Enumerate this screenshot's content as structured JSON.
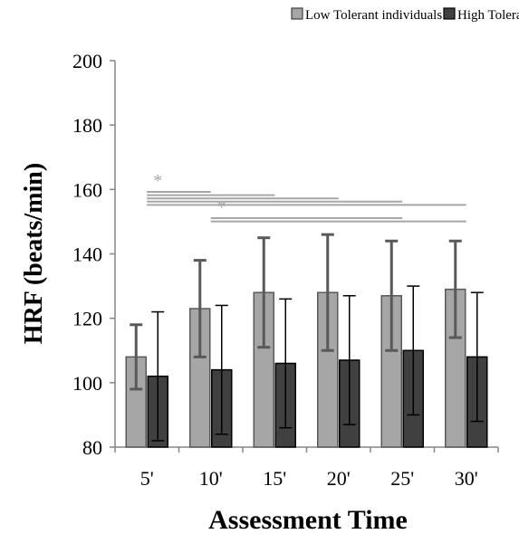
{
  "chart_data": {
    "type": "bar",
    "title": "",
    "xlabel": "Assessment Time",
    "ylabel": "HRF (beats/min)",
    "ylim": [
      80,
      200
    ],
    "yticks": [
      80,
      100,
      120,
      140,
      160,
      180,
      200
    ],
    "categories": [
      "5'",
      "10'",
      "15'",
      "20'",
      "25'",
      "30'"
    ],
    "legend_position": "top",
    "series": [
      {
        "name": "Low Tolerant individuals",
        "color": "#a6a6a6",
        "values": [
          108,
          123,
          128,
          128,
          127,
          129
        ],
        "error": [
          10,
          15,
          17,
          18,
          17,
          15
        ]
      },
      {
        "name": "High Tolerant individuals",
        "color": "#404040",
        "values": [
          102,
          104,
          106,
          107,
          110,
          108
        ],
        "error": [
          20,
          20,
          20,
          20,
          20,
          20
        ]
      }
    ],
    "annotations": [
      {
        "text": "*",
        "from": "5'",
        "to": [
          "10'",
          "15'",
          "20'",
          "25'",
          "30'"
        ]
      },
      {
        "text": "*",
        "from": "10'",
        "to": [
          "25'",
          "30'"
        ]
      }
    ],
    "grid": false
  }
}
